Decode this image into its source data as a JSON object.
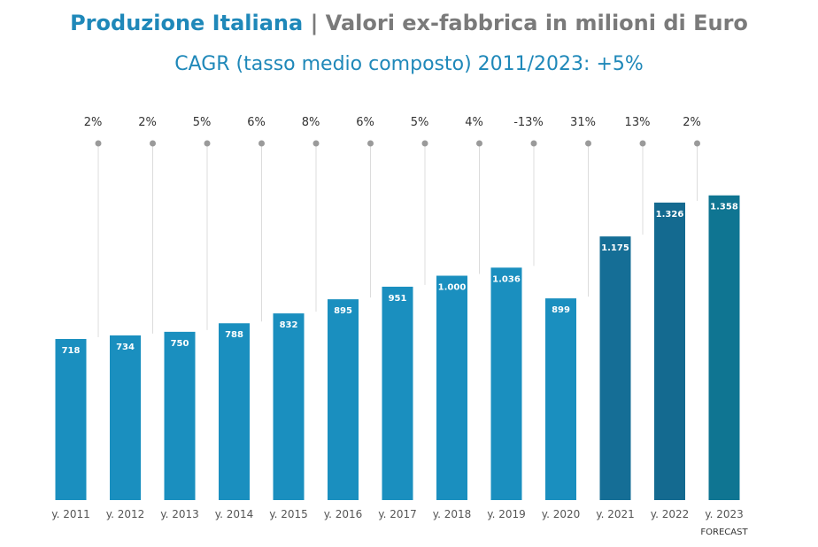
{
  "chart_data": {
    "type": "bar",
    "title_main": "Produzione Italiana",
    "title_rest": "| Valori ex-fabbrica in milioni di Euro",
    "subtitle": "CAGR (tasso medio composto) 2011/2023: +5%",
    "categories": [
      "y. 2011",
      "y. 2012",
      "y. 2013",
      "y. 2014",
      "y. 2015",
      "y. 2016",
      "y. 2017",
      "y. 2018",
      "y. 2019",
      "y. 2020",
      "y. 2021",
      "y. 2022",
      "y. 2023"
    ],
    "values": [
      718,
      734,
      750,
      788,
      832,
      895,
      951,
      1000,
      1036,
      899,
      1175,
      1326,
      1358
    ],
    "value_labels": [
      "718",
      "734",
      "750",
      "788",
      "832",
      "895",
      "951",
      "1.000",
      "1.036",
      "899",
      "1.175",
      "1.326",
      "1.358"
    ],
    "growth_labels": [
      "2%",
      "2%",
      "5%",
      "6%",
      "8%",
      "6%",
      "5%",
      "4%",
      "-13%",
      "31%",
      "13%",
      "2%",
      ""
    ],
    "annotation": "FORECAST",
    "ylim": [
      0,
      1400
    ],
    "grid": false,
    "colors": [
      "#1a8fbf",
      "#1a8fbf",
      "#1a8fbf",
      "#1a8fbf",
      "#1a8fbf",
      "#1a8fbf",
      "#1a8fbf",
      "#1a8fbf",
      "#1a8fbf",
      "#1a8fbf",
      "#156e96",
      "#146a90",
      "#0f7592"
    ]
  }
}
